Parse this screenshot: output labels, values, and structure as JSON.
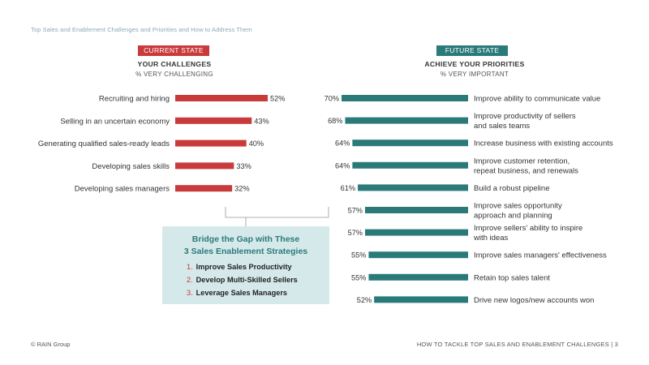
{
  "page_title": "Top Sales and Enablement Challenges and Priorities and How to Address Them",
  "current": {
    "tag": "CURRENT STATE",
    "heading": "YOUR CHALLENGES",
    "subheading": "% VERY CHALLENGING"
  },
  "future": {
    "tag": "FUTURE STATE",
    "heading": "ACHIEVE YOUR PRIORITIES",
    "subheading": "% VERY IMPORTANT"
  },
  "callout": {
    "title_line1": "Bridge the Gap with These",
    "title_line2": "3 Sales Enablement Strategies",
    "strategies": [
      {
        "num": "1.",
        "text": "Improve Sales Productivity"
      },
      {
        "num": "2.",
        "text": "Develop Multi-Skilled Sellers"
      },
      {
        "num": "3.",
        "text": "Leverage Sales Managers"
      }
    ]
  },
  "footer": {
    "left": "© RAIN Group",
    "right": "HOW TO TACKLE TOP SALES AND ENABLEMENT CHALLENGES  |  3"
  },
  "colors": {
    "challenge": "#c93a3a",
    "priority": "#2b7a7a",
    "callout_bg": "#d6e9ea"
  },
  "chart_data": [
    {
      "type": "bar",
      "orientation": "horizontal",
      "unit": "%",
      "categories": [
        "Recruiting and hiring",
        "Selling in an uncertain economy",
        "Generating qualified sales-ready leads",
        "Developing sales skills",
        "Developing sales managers"
      ],
      "values": [
        52,
        43,
        40,
        33,
        32
      ]
    },
    {
      "type": "bar",
      "orientation": "horizontal",
      "unit": "%",
      "categories": [
        [
          "Improve ability to communicate value"
        ],
        [
          "Improve productivity of sellers",
          "and sales teams"
        ],
        [
          "Increase business with existing accounts"
        ],
        [
          "Improve customer retention,",
          "repeat business, and renewals"
        ],
        [
          "Build a robust pipeline"
        ],
        [
          "Improve sales opportunity",
          "approach and planning"
        ],
        [
          "Improve sellers' ability to inspire",
          "with ideas"
        ],
        [
          "Improve sales managers' effectiveness"
        ],
        [
          "Retain top sales talent"
        ],
        [
          "Drive new logos/new accounts won"
        ]
      ],
      "values": [
        70,
        68,
        64,
        64,
        61,
        57,
        57,
        55,
        55,
        52
      ]
    }
  ]
}
